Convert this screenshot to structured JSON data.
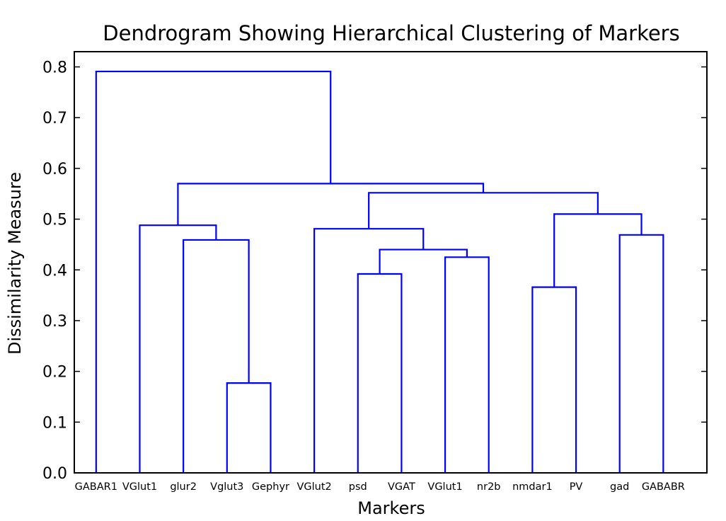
{
  "chart_data": {
    "type": "dendrogram",
    "title": "Dendrogram Showing Hierarchical Clustering of Markers",
    "xlabel": "Markers",
    "ylabel": "Dissimilarity Measure",
    "ylim": [
      0,
      0.83
    ],
    "yticks": [
      "0.0",
      "0.1",
      "0.2",
      "0.3",
      "0.4",
      "0.5",
      "0.6",
      "0.7",
      "0.8"
    ],
    "leaves": [
      "GABAR1",
      "VGlut1",
      "glur2",
      "Vglut3",
      "Gephyr",
      "VGlut2",
      "psd",
      "VGAT",
      "VGlut1",
      "nr2b",
      "nmdar1",
      "PV",
      "gad",
      "GABABR"
    ],
    "merges": [
      {
        "left": "L3",
        "right": "L4",
        "height": 0.177
      },
      {
        "left": "L2",
        "right": "M0",
        "height": 0.459
      },
      {
        "left": "L1",
        "right": "M1",
        "height": 0.488
      },
      {
        "left": "L6",
        "right": "L7",
        "height": 0.392
      },
      {
        "left": "L8",
        "right": "L9",
        "height": 0.425
      },
      {
        "left": "M3",
        "right": "M4",
        "height": 0.44
      },
      {
        "left": "L5",
        "right": "M5",
        "height": 0.481
      },
      {
        "left": "L10",
        "right": "L11",
        "height": 0.366
      },
      {
        "left": "L12",
        "right": "L13",
        "height": 0.469
      },
      {
        "left": "M7",
        "right": "M8",
        "height": 0.51
      },
      {
        "left": "M6",
        "right": "M9",
        "height": 0.552
      },
      {
        "left": "M2",
        "right": "M10",
        "height": 0.57
      },
      {
        "left": "L0",
        "right": "M11",
        "height": 0.791
      }
    ],
    "line_color": "#0000ff",
    "grid": false
  }
}
